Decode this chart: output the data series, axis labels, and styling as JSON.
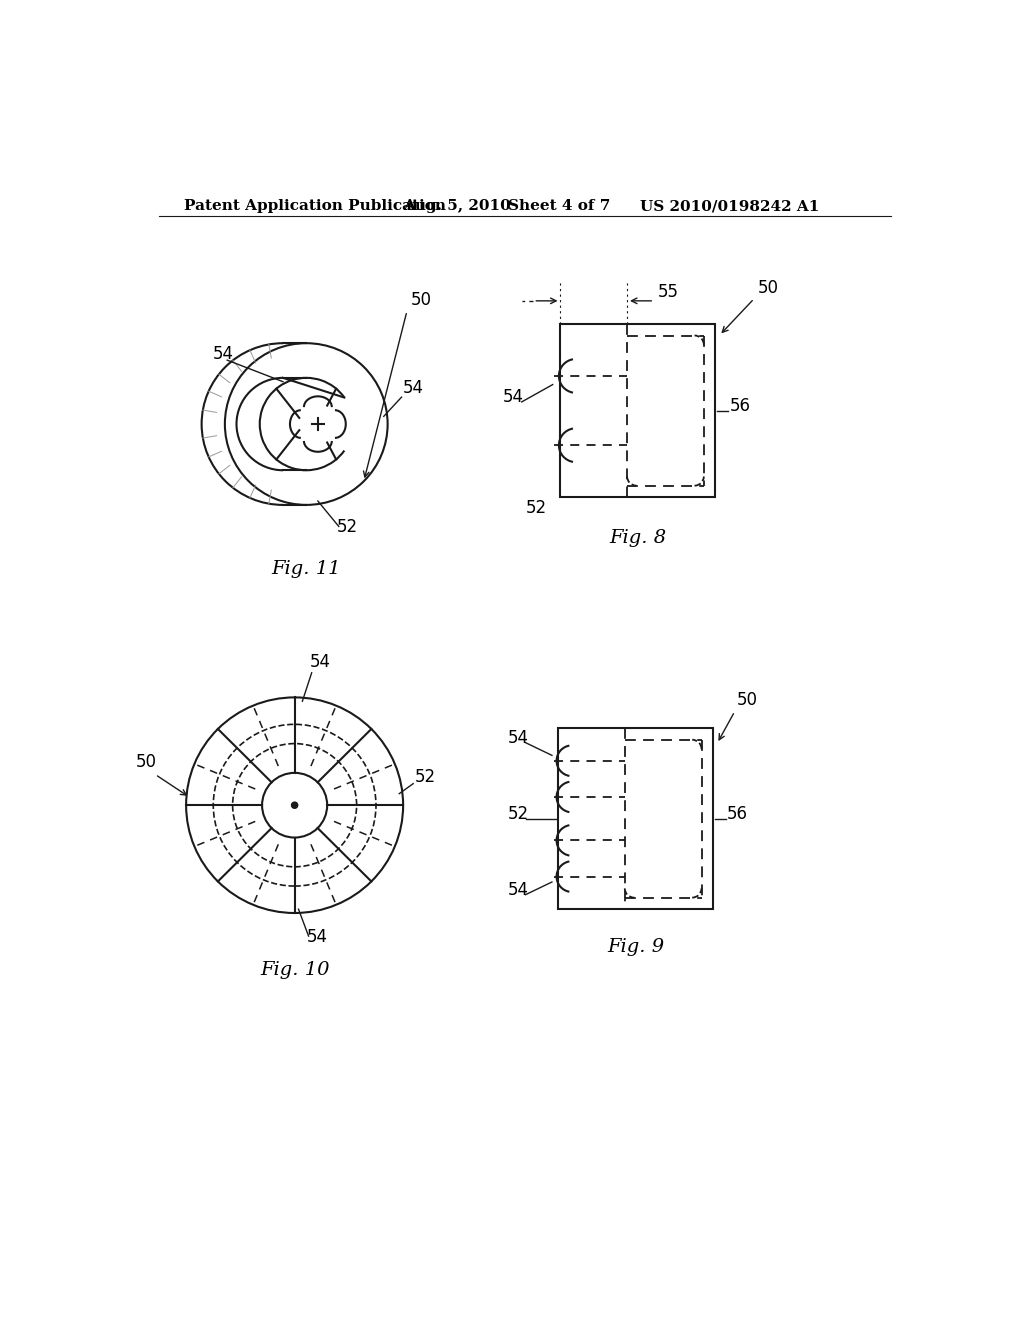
{
  "background_color": "#ffffff",
  "header_left": "Patent Application Publication",
  "header_mid": "Aug. 5, 2010",
  "header_right_sheet": "Sheet 4 of 7",
  "header_right_patent": "US 2010/0198242 A1",
  "fig11_label": "Fig. 11",
  "fig8_label": "Fig. 8",
  "fig10_label": "Fig. 10",
  "fig9_label": "Fig. 9",
  "line_color": "#1a1a1a",
  "text_color": "#000000",
  "header_font_size": 11,
  "fig_label_font_size": 14,
  "annotation_font_size": 12
}
